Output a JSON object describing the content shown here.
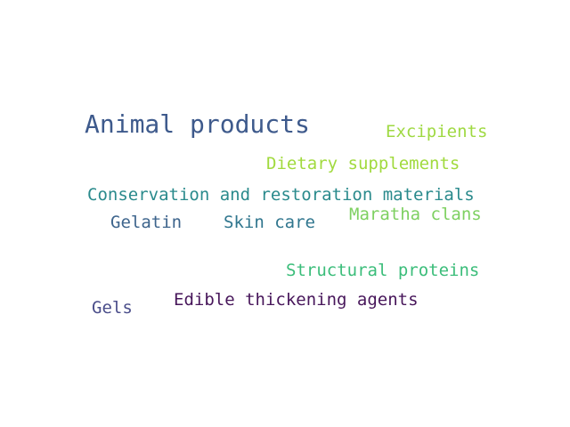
{
  "words": {
    "animal_products": {
      "text": "Animal products",
      "color": "#3e5a8c"
    },
    "excipients": {
      "text": "Excipients",
      "color": "#9fd942"
    },
    "dietary_supplements": {
      "text": "Dietary supplements",
      "color": "#a1da3e"
    },
    "conservation": {
      "text": "Conservation and restoration materials",
      "color": "#2a8a8c"
    },
    "gelatin": {
      "text": "Gelatin",
      "color": "#3d648c"
    },
    "skin_care": {
      "text": "Skin care",
      "color": "#30768e"
    },
    "maratha_clans": {
      "text": "Maratha clans",
      "color": "#7ed061"
    },
    "structural_proteins": {
      "text": "Structural proteins",
      "color": "#3bbd7a"
    },
    "edible_thickening": {
      "text": "Edible thickening agents",
      "color": "#47165a"
    },
    "gels": {
      "text": "Gels",
      "color": "#4a4d8a"
    }
  }
}
